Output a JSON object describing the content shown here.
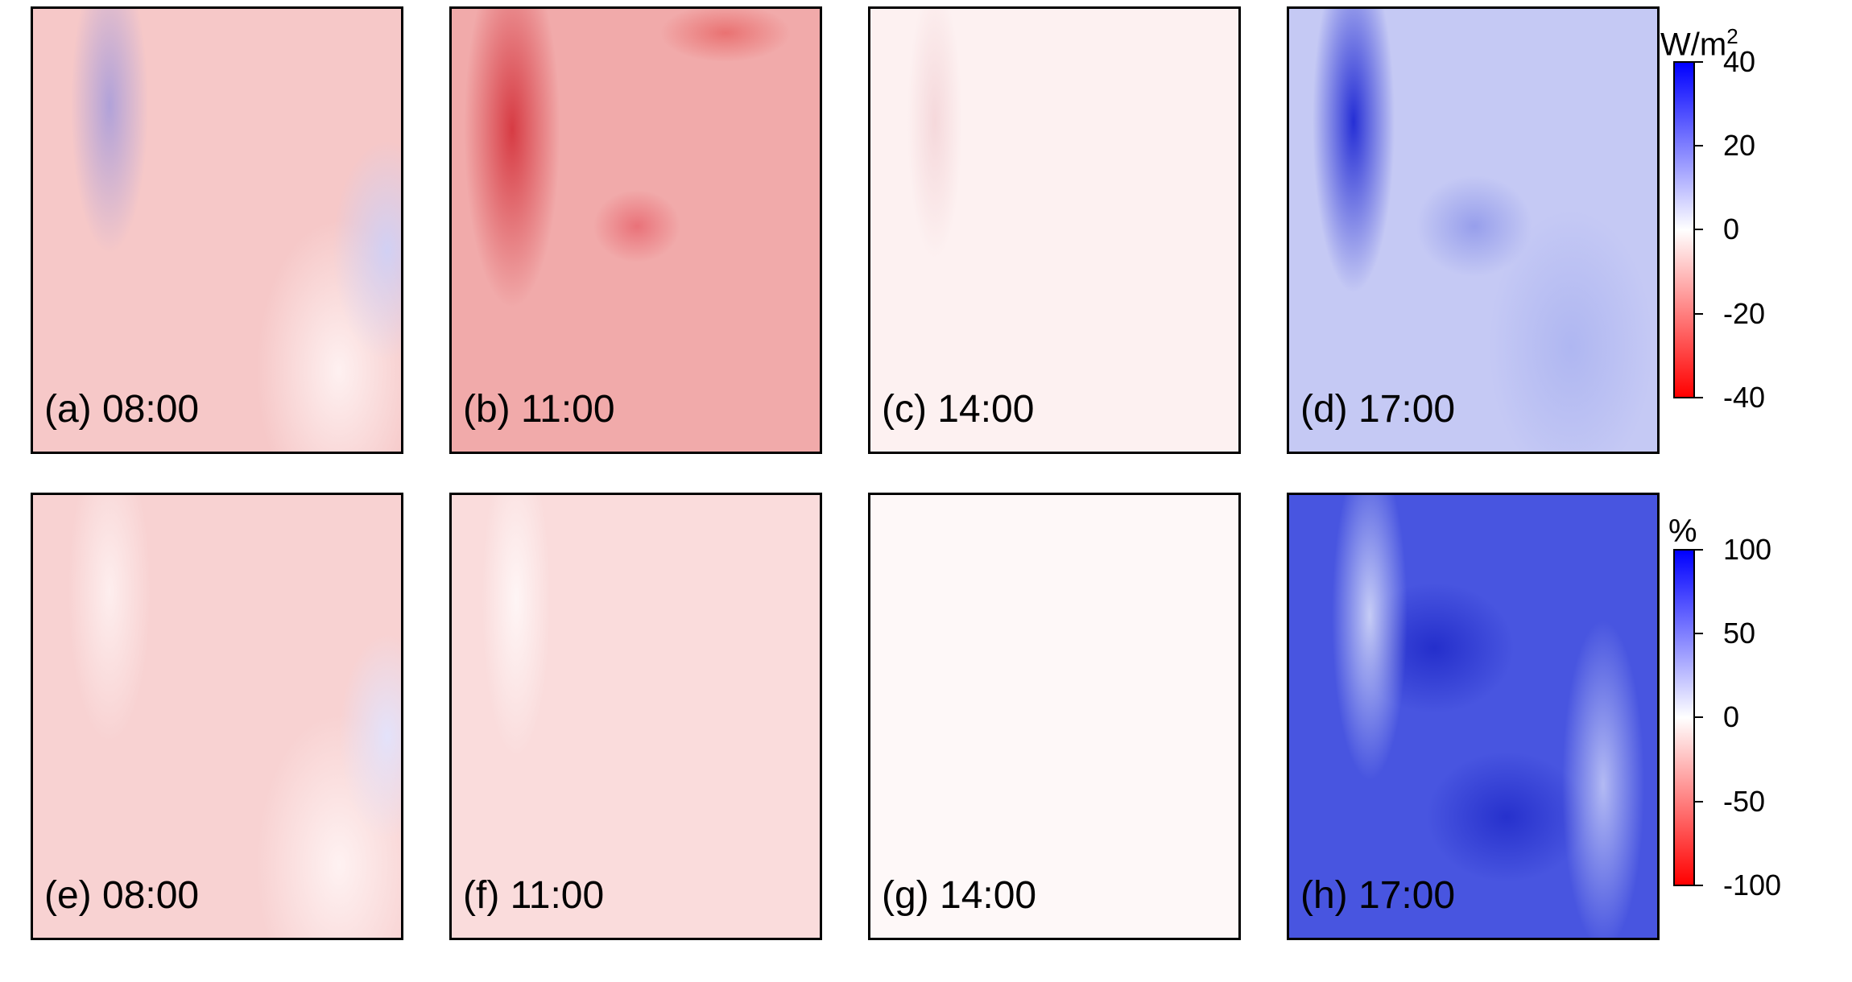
{
  "top_row": {
    "panels": [
      {
        "label": "(a) 08:00",
        "tone": "light-red"
      },
      {
        "label": "(b) 11:00",
        "tone": "red"
      },
      {
        "label": "(c) 14:00",
        "tone": "near-white"
      },
      {
        "label": "(d) 17:00",
        "tone": "blue"
      }
    ],
    "colorbar": {
      "unit_base": "W/m",
      "unit_exp": "2",
      "ticks": [
        "40",
        "20",
        "0",
        "-20",
        "-40"
      ],
      "range": [
        -40,
        40
      ],
      "colors": {
        "high": "#0000ff",
        "mid": "#ffffff",
        "low": "#ff0000"
      }
    }
  },
  "bottom_row": {
    "panels": [
      {
        "label": "(e) 08:00",
        "tone": "light-red"
      },
      {
        "label": "(f) 11:00",
        "tone": "pale-red"
      },
      {
        "label": "(g) 14:00",
        "tone": "near-white"
      },
      {
        "label": "(h) 17:00",
        "tone": "strong-blue"
      }
    ],
    "colorbar": {
      "unit": "%",
      "ticks": [
        "100",
        "50",
        "0",
        "-50",
        "-100"
      ],
      "range": [
        -100,
        100
      ],
      "colors": {
        "high": "#0000ff",
        "mid": "#ffffff",
        "low": "#ff0000"
      }
    }
  }
}
